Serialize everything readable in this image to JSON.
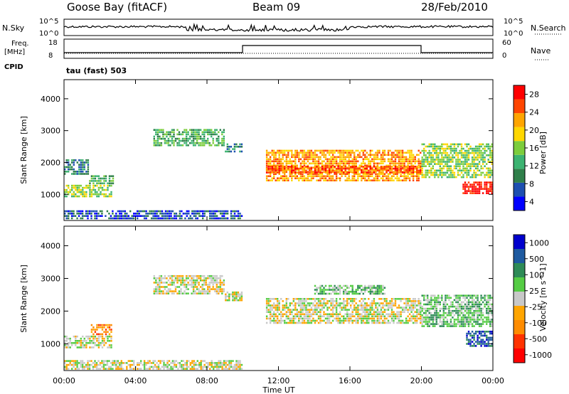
{
  "header": {
    "station": "Goose Bay (fitACF)",
    "beam": "Beam 09",
    "date": "28/Feb/2010"
  },
  "noise_panel": {
    "left_label": "N.Sky",
    "right_label": "N.Search",
    "left_ticks": [
      "10^5",
      "10^0"
    ],
    "right_ticks": [
      "10^5",
      "10^0"
    ]
  },
  "freq_panel": {
    "left_label_1": "Freq.",
    "left_label_2": "[MHz]",
    "cpid_label": "CPID",
    "right_label": "Nave",
    "left_ticks": [
      "18",
      "8"
    ],
    "right_ticks": [
      "60",
      "0"
    ]
  },
  "mode_label": "tau (fast) 503",
  "colors": {
    "power": [
      "#0000ff",
      "#1d4fb0",
      "#2f7f4a",
      "#3cb371",
      "#7ccd3c",
      "#ffd700",
      "#ffa500",
      "#ff4500",
      "#ff0000"
    ],
    "velocity": [
      "#0000cd",
      "#1e5aa0",
      "#2e8b57",
      "#55cc44",
      "#c8c8c8",
      "#ffa500",
      "#ff8c00",
      "#ff3300",
      "#ff0000"
    ]
  },
  "chart_data": [
    {
      "type": "heatmap",
      "name": "power",
      "ylabel": "Slant Range [km]",
      "yticks": [
        "1000",
        "2000",
        "3000",
        "4000"
      ],
      "ylim": [
        180,
        4600
      ],
      "xlim": [
        0,
        24
      ],
      "colorbar_label": "Power [dB]",
      "colorbar_ticks": [
        "4",
        "8",
        "12",
        "16",
        "20",
        "24",
        "28"
      ],
      "regions": [
        {
          "t": [
            0.0,
            2.7
          ],
          "r": [
            900,
            1300
          ],
          "level": 4
        },
        {
          "t": [
            0.0,
            1.4
          ],
          "r": [
            1600,
            2100
          ],
          "level": 2
        },
        {
          "t": [
            1.4,
            2.8
          ],
          "r": [
            1300,
            1600
          ],
          "level": 3
        },
        {
          "t": [
            5.0,
            9.0
          ],
          "r": [
            2500,
            3050
          ],
          "level": 3
        },
        {
          "t": [
            9.0,
            10.0
          ],
          "r": [
            2300,
            2600
          ],
          "level": 2
        },
        {
          "t": [
            11.3,
            20.0
          ],
          "r": [
            1400,
            2400
          ],
          "level": 6
        },
        {
          "t": [
            11.3,
            20.0
          ],
          "r": [
            1650,
            1900
          ],
          "level": 7
        },
        {
          "t": [
            20.0,
            24.0
          ],
          "r": [
            1500,
            2600
          ],
          "level": 4
        },
        {
          "t": [
            22.3,
            24.0
          ],
          "r": [
            1000,
            1400
          ],
          "level": 8
        },
        {
          "t": [
            0.0,
            10.0
          ],
          "r": [
            200,
            500
          ],
          "level": 1
        }
      ]
    },
    {
      "type": "heatmap",
      "name": "velocity",
      "ylabel": "Slant Range [km]",
      "yticks": [
        "1000",
        "2000",
        "3000",
        "4000"
      ],
      "ylim": [
        180,
        4600
      ],
      "xlim": [
        0,
        24
      ],
      "xticks": [
        "00:00",
        "04:00",
        "08:00",
        "12:00",
        "16:00",
        "20:00",
        "00:00"
      ],
      "xlabel": "Time UT",
      "colorbar_label": "Velocity [m s^-1]",
      "colorbar_ticks": [
        "1000",
        "500",
        "100",
        "25",
        "-25",
        "-100",
        "-500",
        "-1000"
      ],
      "regions": [
        {
          "t": [
            0.0,
            2.7
          ],
          "r": [
            850,
            1250
          ],
          "level": 4
        },
        {
          "t": [
            1.5,
            2.7
          ],
          "r": [
            1250,
            1600
          ],
          "level": 6
        },
        {
          "t": [
            5.0,
            9.0
          ],
          "r": [
            2500,
            3100
          ],
          "level": 4
        },
        {
          "t": [
            9.0,
            10.0
          ],
          "r": [
            2300,
            2600
          ],
          "level": 4
        },
        {
          "t": [
            11.3,
            20.0
          ],
          "r": [
            1600,
            2400
          ],
          "level": 4
        },
        {
          "t": [
            14.0,
            18.0
          ],
          "r": [
            2500,
            2800
          ],
          "level": 3
        },
        {
          "t": [
            20.0,
            24.0
          ],
          "r": [
            1500,
            2500
          ],
          "level": 3
        },
        {
          "t": [
            22.5,
            24.0
          ],
          "r": [
            900,
            1400
          ],
          "level": 1
        },
        {
          "t": [
            0.0,
            10.0
          ],
          "r": [
            200,
            500
          ],
          "level": 4
        }
      ]
    }
  ]
}
